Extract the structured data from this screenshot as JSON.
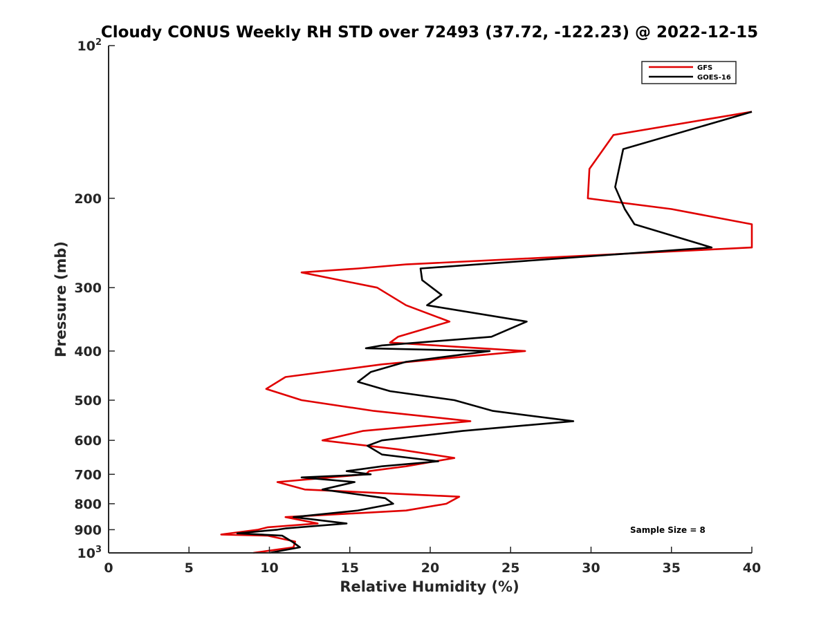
{
  "chart_data": {
    "type": "line",
    "title": "Cloudy CONUS Weekly RH STD over 72493 (37.72, -122.23) @ 2022-12-15",
    "xlabel": "Relative Humidity (%)",
    "ylabel": "Pressure (mb)",
    "xlim": [
      0,
      40
    ],
    "ylim": [
      100,
      1000
    ],
    "y_scale": "log",
    "y_reversed": true,
    "grid": false,
    "legend_position": "top-right",
    "x_ticks": [
      "0",
      "5",
      "10",
      "15",
      "20",
      "25",
      "30",
      "35",
      "40"
    ],
    "y_ticks": [
      {
        "value": 100,
        "base": "10",
        "exp": "2"
      },
      {
        "value": 200,
        "label": "200"
      },
      {
        "value": 300,
        "label": "300"
      },
      {
        "value": 400,
        "label": "400"
      },
      {
        "value": 500,
        "label": "500"
      },
      {
        "value": 600,
        "label": "600"
      },
      {
        "value": 700,
        "label": "700"
      },
      {
        "value": 800,
        "label": "800"
      },
      {
        "value": 900,
        "label": "900"
      },
      {
        "value": 1000,
        "base": "10",
        "exp": "3"
      }
    ],
    "annotation": "Sample Size = 8",
    "series": [
      {
        "name": "GFS",
        "color": "#e00000",
        "points": [
          [
            9.0,
            1000
          ],
          [
            11.5,
            975
          ],
          [
            11.6,
            950
          ],
          [
            9.9,
            925
          ],
          [
            7.0,
            920
          ],
          [
            9.3,
            900
          ],
          [
            9.9,
            890
          ],
          [
            13.0,
            875
          ],
          [
            11.0,
            850
          ],
          [
            18.5,
            825
          ],
          [
            21.0,
            800
          ],
          [
            21.8,
            775
          ],
          [
            12.2,
            750
          ],
          [
            10.5,
            725
          ],
          [
            16.0,
            700
          ],
          [
            16.2,
            690
          ],
          [
            18.5,
            675
          ],
          [
            21.5,
            650
          ],
          [
            18.0,
            625
          ],
          [
            13.3,
            600
          ],
          [
            15.8,
            575
          ],
          [
            22.5,
            550
          ],
          [
            16.5,
            525
          ],
          [
            12.0,
            500
          ],
          [
            9.8,
            475
          ],
          [
            11.0,
            450
          ],
          [
            17.0,
            425
          ],
          [
            25.9,
            400
          ],
          [
            17.5,
            385
          ],
          [
            18.0,
            375
          ],
          [
            21.2,
            350
          ],
          [
            18.5,
            325
          ],
          [
            16.7,
            300
          ],
          [
            12.0,
            280
          ],
          [
            15.5,
            275
          ],
          [
            18.5,
            270
          ],
          [
            40,
            250
          ],
          [
            40,
            225
          ],
          [
            35,
            210
          ],
          [
            29.8,
            200
          ],
          [
            29.9,
            175
          ],
          [
            31.4,
            150
          ],
          [
            40,
            135
          ]
        ]
      },
      {
        "name": "GOES-16",
        "color": "#000000",
        "points": [
          [
            10.0,
            1000
          ],
          [
            11.9,
            975
          ],
          [
            11.4,
            950
          ],
          [
            10.8,
            925
          ],
          [
            8.0,
            915
          ],
          [
            10.5,
            900
          ],
          [
            11.0,
            895
          ],
          [
            14.8,
            875
          ],
          [
            11.5,
            850
          ],
          [
            15.5,
            825
          ],
          [
            17.7,
            800
          ],
          [
            17.2,
            780
          ],
          [
            13.3,
            750
          ],
          [
            15.3,
            725
          ],
          [
            12.0,
            710
          ],
          [
            16.3,
            700
          ],
          [
            14.8,
            690
          ],
          [
            17.0,
            675
          ],
          [
            20.5,
            660
          ],
          [
            17.0,
            640
          ],
          [
            16.1,
            615
          ],
          [
            17.0,
            600
          ],
          [
            22.0,
            575
          ],
          [
            28.9,
            550
          ],
          [
            23.9,
            525
          ],
          [
            21.5,
            500
          ],
          [
            17.5,
            480
          ],
          [
            15.5,
            460
          ],
          [
            16.3,
            440
          ],
          [
            18.5,
            420
          ],
          [
            23.7,
            400
          ],
          [
            16.0,
            395
          ],
          [
            17.0,
            390
          ],
          [
            23.8,
            375
          ],
          [
            26.0,
            350
          ],
          [
            19.8,
            325
          ],
          [
            20.7,
            310
          ],
          [
            19.5,
            290
          ],
          [
            19.4,
            275
          ],
          [
            37.5,
            250
          ],
          [
            32.7,
            225
          ],
          [
            32.1,
            210
          ],
          [
            31.5,
            190
          ],
          [
            32.0,
            160
          ],
          [
            40,
            135
          ]
        ]
      }
    ]
  }
}
